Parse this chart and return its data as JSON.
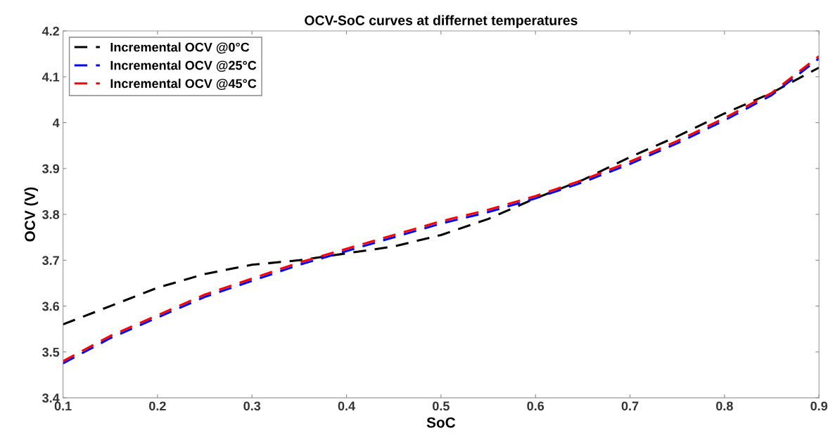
{
  "chart_data": {
    "type": "line",
    "title": "OCV-SoC curves at differnet temperatures",
    "xlabel": "SoC",
    "ylabel": "OCV (V)",
    "x": [
      0.1,
      0.15,
      0.2,
      0.25,
      0.3,
      0.35,
      0.4,
      0.45,
      0.5,
      0.55,
      0.6,
      0.65,
      0.7,
      0.75,
      0.8,
      0.85,
      0.9
    ],
    "series": [
      {
        "name": "Incremental OCV @0°C",
        "color": "#000000",
        "values": [
          3.56,
          3.6,
          3.64,
          3.67,
          3.69,
          3.7,
          3.715,
          3.73,
          3.755,
          3.79,
          3.835,
          3.875,
          3.925,
          3.97,
          4.02,
          4.065,
          4.12
        ]
      },
      {
        "name": "Incremental OCV @25°C",
        "color": "#0000ff",
        "values": [
          3.475,
          3.53,
          3.575,
          3.62,
          3.655,
          3.69,
          3.72,
          3.75,
          3.78,
          3.805,
          3.835,
          3.87,
          3.91,
          3.955,
          4.005,
          4.06,
          4.14
        ]
      },
      {
        "name": "Incremental OCV @45°C",
        "color": "#ff0000",
        "values": [
          3.48,
          3.535,
          3.58,
          3.625,
          3.66,
          3.695,
          3.725,
          3.755,
          3.785,
          3.81,
          3.84,
          3.875,
          3.915,
          3.96,
          4.01,
          4.065,
          4.145
        ]
      }
    ],
    "xlim": [
      0.1,
      0.9
    ],
    "xticks": [
      0.1,
      0.2,
      0.3,
      0.4,
      0.5,
      0.6,
      0.7,
      0.8,
      0.9
    ],
    "ylim": [
      3.4,
      4.2
    ],
    "yticks": [
      3.4,
      3.5,
      3.6,
      3.7,
      3.8,
      3.9,
      4,
      4.1,
      4.2
    ],
    "grid": false,
    "legend": "top left",
    "line_style": "dashed",
    "marker": "none"
  }
}
